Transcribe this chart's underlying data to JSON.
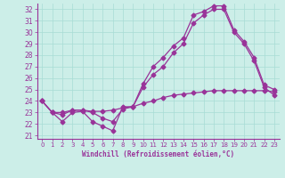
{
  "xlabel": "Windchill (Refroidissement éolien,°C)",
  "xlim": [
    -0.5,
    23.5
  ],
  "ylim": [
    20.7,
    32.5
  ],
  "yticks": [
    21,
    22,
    23,
    24,
    25,
    26,
    27,
    28,
    29,
    30,
    31,
    32
  ],
  "xticks": [
    0,
    1,
    2,
    3,
    4,
    5,
    6,
    7,
    8,
    9,
    10,
    11,
    12,
    13,
    14,
    15,
    16,
    17,
    18,
    19,
    20,
    21,
    22,
    23
  ],
  "bg_color": "#cceee8",
  "line_color": "#993399",
  "line1_x": [
    0,
    1,
    2,
    3,
    4,
    5,
    6,
    7,
    8,
    9,
    10,
    11,
    12,
    13,
    14,
    15,
    16,
    17,
    18,
    19,
    20,
    21,
    22,
    23
  ],
  "line1_y": [
    24.0,
    23.0,
    22.2,
    23.0,
    23.1,
    22.2,
    21.8,
    21.4,
    23.5,
    23.5,
    25.5,
    27.0,
    27.8,
    28.8,
    29.5,
    31.5,
    31.8,
    32.3,
    32.3,
    30.2,
    29.2,
    27.8,
    25.4,
    25.0
  ],
  "line2_x": [
    0,
    1,
    2,
    3,
    4,
    5,
    6,
    7,
    8,
    9,
    10,
    11,
    12,
    13,
    14,
    15,
    16,
    17,
    18,
    19,
    20,
    21,
    22,
    23
  ],
  "line2_y": [
    24.0,
    23.0,
    22.8,
    23.2,
    23.2,
    23.0,
    22.5,
    22.2,
    23.3,
    23.5,
    25.2,
    26.3,
    27.0,
    28.2,
    29.0,
    30.8,
    31.5,
    32.0,
    32.0,
    30.0,
    29.0,
    27.5,
    25.2,
    24.5
  ],
  "line3_x": [
    0,
    1,
    2,
    3,
    4,
    5,
    6,
    7,
    8,
    9,
    10,
    11,
    12,
    13,
    14,
    15,
    16,
    17,
    18,
    19,
    20,
    21,
    22,
    23
  ],
  "line3_y": [
    24.0,
    23.0,
    23.0,
    23.2,
    23.2,
    23.1,
    23.1,
    23.2,
    23.4,
    23.5,
    23.8,
    24.0,
    24.3,
    24.5,
    24.6,
    24.7,
    24.8,
    24.9,
    24.9,
    24.9,
    24.9,
    24.9,
    24.9,
    24.8
  ]
}
